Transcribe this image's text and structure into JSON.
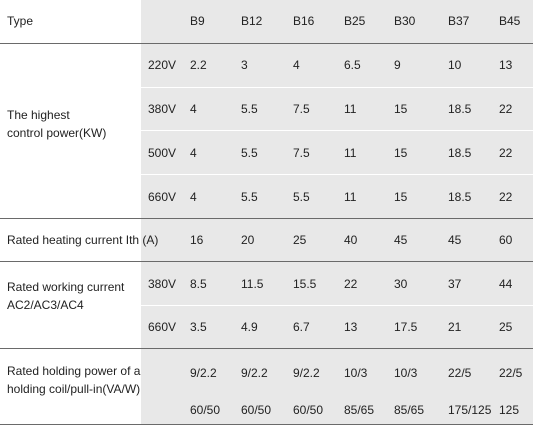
{
  "header": {
    "type_label": "Type",
    "models": [
      "B9",
      "B12",
      "B16",
      "B25",
      "B30",
      "B37",
      "B45"
    ]
  },
  "rows": {
    "control_power": {
      "label_line1": "The highest",
      "label_line2": "control power(KW)",
      "voltages": [
        "220V",
        "380V",
        "500V",
        "660V"
      ],
      "values": [
        [
          "2.2",
          "3",
          "4",
          "6.5",
          "9",
          "10",
          "13"
        ],
        [
          "4",
          "5.5",
          "7.5",
          "11",
          "15",
          "18.5",
          "22"
        ],
        [
          "4",
          "5.5",
          "7.5",
          "11",
          "15",
          "18.5",
          "22"
        ],
        [
          "4",
          "5.5",
          "5.5",
          "11",
          "15",
          "18.5",
          "22"
        ]
      ]
    },
    "heating_current": {
      "label": "Rated heating current Ith (A)",
      "values": [
        "16",
        "20",
        "25",
        "40",
        "45",
        "45",
        "60"
      ]
    },
    "working_current": {
      "label_line1": "Rated working current",
      "label_line2": "AC2/AC3/AC4",
      "voltages": [
        "380V",
        "660V"
      ],
      "values": [
        [
          "8.5",
          "11.5",
          "15.5",
          "22",
          "30",
          "37",
          "44"
        ],
        [
          "3.5",
          "4.9",
          "6.7",
          "13",
          "17.5",
          "21",
          "25"
        ]
      ]
    },
    "holding_power": {
      "label_line1": "Rated holding power of a",
      "label_line2": "holding coil/pull-in(VA/W)",
      "values": [
        [
          "9/2.2",
          "9/2.2",
          "9/2.2",
          "10/3",
          "10/3",
          "22/5",
          "22/5"
        ],
        [
          "60/50",
          "60/50",
          "60/50",
          "85/65",
          "85/65",
          "175/125",
          "125"
        ]
      ]
    }
  }
}
